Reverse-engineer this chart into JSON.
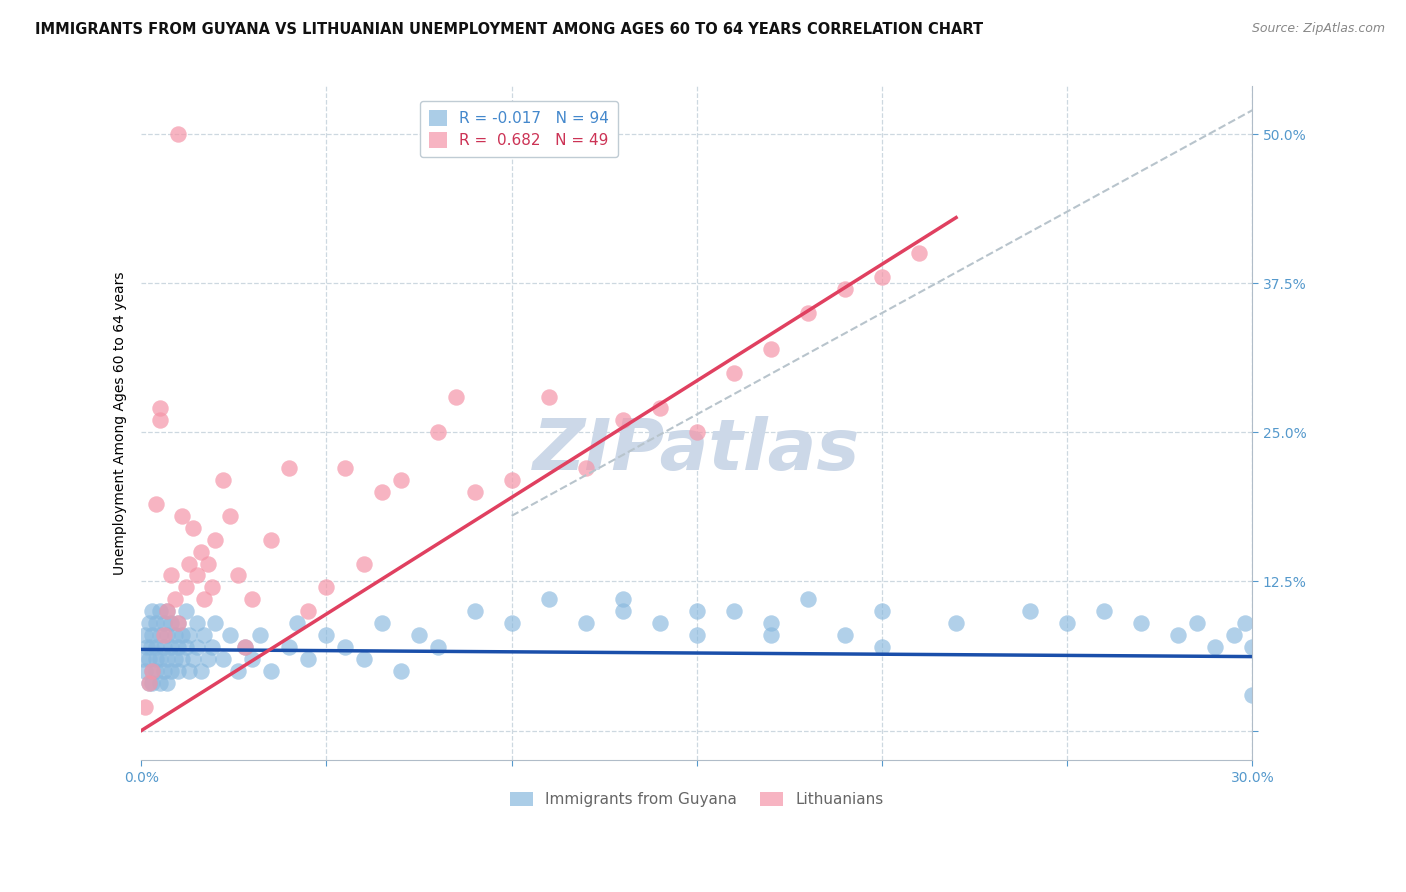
{
  "title": "IMMIGRANTS FROM GUYANA VS LITHUANIAN UNEMPLOYMENT AMONG AGES 60 TO 64 YEARS CORRELATION CHART",
  "source": "Source: ZipAtlas.com",
  "ylabel": "Unemployment Among Ages 60 to 64 years",
  "xlim": [
    0.0,
    0.3
  ],
  "ylim": [
    -0.025,
    0.54
  ],
  "xtick_positions": [
    0.0,
    0.05,
    0.1,
    0.15,
    0.2,
    0.25,
    0.3
  ],
  "xtick_labels": [
    "0.0%",
    "",
    "",
    "",
    "",
    "",
    "30.0%"
  ],
  "right_ytick_positions": [
    0.0,
    0.125,
    0.25,
    0.375,
    0.5
  ],
  "right_ytick_labels": [
    "",
    "12.5%",
    "25.0%",
    "37.5%",
    "50.0%"
  ],
  "blue_color": "#88b8de",
  "pink_color": "#f595a8",
  "blue_line_color": "#1a4faa",
  "pink_line_color": "#e04060",
  "dashed_line_color": "#b8c4cc",
  "grid_color": "#cdd8e0",
  "watermark": "ZIPatlas",
  "watermark_color": "#ccd8e8",
  "background_color": "#ffffff",
  "blue_label": "Immigrants from Guyana",
  "pink_label": "Lithuanians",
  "tick_color": "#5599cc",
  "title_fontsize": 10.5,
  "tick_fontsize": 10,
  "legend_fontsize": 11,
  "watermark_fontsize": 52,
  "ylabel_fontsize": 10,
  "legend_text_blue": "#4488cc",
  "legend_text_pink": "#cc3355",
  "bottom_legend_color": "#666666",
  "blue_x": [
    0.0005,
    0.001,
    0.001,
    0.0015,
    0.002,
    0.002,
    0.002,
    0.0025,
    0.003,
    0.003,
    0.003,
    0.003,
    0.004,
    0.004,
    0.004,
    0.004,
    0.005,
    0.005,
    0.005,
    0.005,
    0.006,
    0.006,
    0.006,
    0.007,
    0.007,
    0.007,
    0.007,
    0.008,
    0.008,
    0.008,
    0.009,
    0.009,
    0.01,
    0.01,
    0.01,
    0.011,
    0.011,
    0.012,
    0.012,
    0.013,
    0.013,
    0.014,
    0.015,
    0.015,
    0.016,
    0.017,
    0.018,
    0.019,
    0.02,
    0.022,
    0.024,
    0.026,
    0.028,
    0.03,
    0.032,
    0.035,
    0.04,
    0.042,
    0.045,
    0.05,
    0.055,
    0.06,
    0.065,
    0.07,
    0.075,
    0.08,
    0.09,
    0.1,
    0.11,
    0.12,
    0.13,
    0.14,
    0.15,
    0.16,
    0.17,
    0.18,
    0.19,
    0.2,
    0.22,
    0.24,
    0.25,
    0.26,
    0.27,
    0.28,
    0.285,
    0.29,
    0.295,
    0.298,
    0.3,
    0.3,
    0.15,
    0.2,
    0.13,
    0.17
  ],
  "blue_y": [
    0.06,
    0.05,
    0.08,
    0.07,
    0.06,
    0.09,
    0.04,
    0.07,
    0.05,
    0.08,
    0.1,
    0.04,
    0.06,
    0.09,
    0.07,
    0.05,
    0.08,
    0.06,
    0.1,
    0.04,
    0.07,
    0.09,
    0.05,
    0.06,
    0.08,
    0.1,
    0.04,
    0.07,
    0.09,
    0.05,
    0.06,
    0.08,
    0.07,
    0.05,
    0.09,
    0.06,
    0.08,
    0.07,
    0.1,
    0.05,
    0.08,
    0.06,
    0.07,
    0.09,
    0.05,
    0.08,
    0.06,
    0.07,
    0.09,
    0.06,
    0.08,
    0.05,
    0.07,
    0.06,
    0.08,
    0.05,
    0.07,
    0.09,
    0.06,
    0.08,
    0.07,
    0.06,
    0.09,
    0.05,
    0.08,
    0.07,
    0.1,
    0.09,
    0.11,
    0.09,
    0.1,
    0.09,
    0.08,
    0.1,
    0.09,
    0.11,
    0.08,
    0.1,
    0.09,
    0.1,
    0.09,
    0.1,
    0.09,
    0.08,
    0.09,
    0.07,
    0.08,
    0.09,
    0.03,
    0.07,
    0.1,
    0.07,
    0.11,
    0.08
  ],
  "pink_x": [
    0.001,
    0.002,
    0.003,
    0.004,
    0.005,
    0.005,
    0.006,
    0.007,
    0.008,
    0.009,
    0.01,
    0.011,
    0.012,
    0.013,
    0.014,
    0.015,
    0.016,
    0.017,
    0.018,
    0.019,
    0.02,
    0.022,
    0.024,
    0.026,
    0.028,
    0.03,
    0.035,
    0.04,
    0.045,
    0.05,
    0.055,
    0.06,
    0.065,
    0.07,
    0.08,
    0.085,
    0.09,
    0.1,
    0.11,
    0.12,
    0.13,
    0.14,
    0.15,
    0.16,
    0.17,
    0.18,
    0.19,
    0.2,
    0.21
  ],
  "pink_y": [
    0.02,
    0.04,
    0.05,
    0.19,
    0.26,
    0.27,
    0.08,
    0.1,
    0.13,
    0.11,
    0.09,
    0.18,
    0.12,
    0.14,
    0.17,
    0.13,
    0.15,
    0.11,
    0.14,
    0.12,
    0.16,
    0.21,
    0.18,
    0.13,
    0.07,
    0.11,
    0.16,
    0.22,
    0.1,
    0.12,
    0.22,
    0.14,
    0.2,
    0.21,
    0.25,
    0.28,
    0.2,
    0.21,
    0.28,
    0.22,
    0.26,
    0.27,
    0.25,
    0.3,
    0.32,
    0.35,
    0.37,
    0.38,
    0.4
  ],
  "blue_line_x": [
    0.0,
    0.3
  ],
  "blue_line_y": [
    0.068,
    0.062
  ],
  "pink_line_x": [
    0.0,
    0.22
  ],
  "pink_line_y": [
    0.0,
    0.43
  ],
  "dash_line_x": [
    0.1,
    0.3
  ],
  "dash_line_y": [
    0.18,
    0.52
  ]
}
